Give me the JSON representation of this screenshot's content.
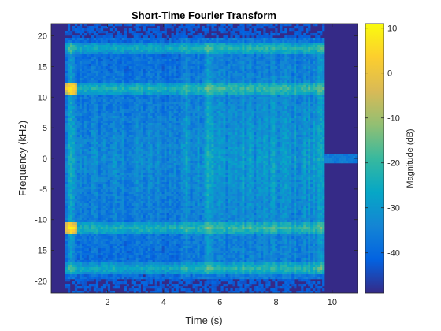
{
  "chart_data": {
    "type": "heatmap",
    "title": "Short-Time Fourier Transform",
    "xlabel": "Time (s)",
    "ylabel": "Frequency (kHz)",
    "xlim": [
      0,
      10.9
    ],
    "ylim": [
      -22,
      22
    ],
    "x_ticks": [
      2,
      4,
      6,
      8,
      10
    ],
    "y_ticks": [
      -20,
      -15,
      -10,
      -5,
      0,
      5,
      10,
      15,
      20
    ],
    "signal_span_s": [
      0.5,
      9.7
    ],
    "dominant_bands_khz": [
      -18,
      -11.4,
      11.4,
      18
    ],
    "burst_times_s": [
      0.7,
      5.6,
      9.6
    ],
    "colorbar": {
      "label": "Magnitude (dB)",
      "range": [
        -49,
        11
      ],
      "ticks": [
        10,
        0,
        -10,
        -20,
        -30,
        -40
      ],
      "colormap": "parula"
    },
    "grid": false
  },
  "colors": {
    "parula": [
      "#352a87",
      "#0363e1",
      "#1485d4",
      "#06a7c6",
      "#38b99e",
      "#92bf73",
      "#d9ba56",
      "#fcce2e",
      "#f9fb0e"
    ],
    "background": "#ffffff",
    "axis": "#262626"
  }
}
